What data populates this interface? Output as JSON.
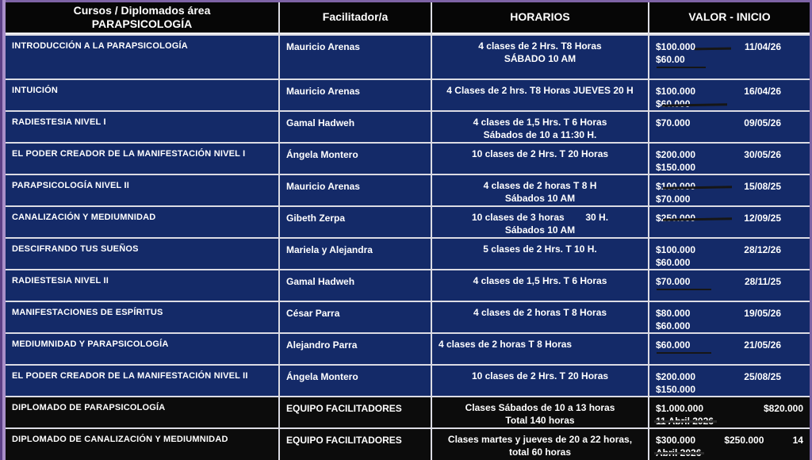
{
  "title": "Cursos y Diplomados área Parapsicología - tabla de horarios y valores",
  "colors": {
    "row_blue": "#142a68",
    "row_black": "#0c0c0c",
    "header_black": "#060606",
    "frame_purple": "#7d63a5",
    "separator": "#dcdce4",
    "text": "#ffffff",
    "pen_mark": "#161616"
  },
  "header": {
    "courses_line1": "Cursos / Diplomados área",
    "courses_line2": "PARAPSICOLOGÍA",
    "facilitator": "Facilitador/a",
    "schedule": "HORARIOS",
    "value": "VALOR - INICIO"
  },
  "rows": [
    {
      "theme": "blue",
      "course": "INTRODUCCIÓN A LA PARAPSICOLOGÍA",
      "facilitator": "Mauricio Arenas",
      "schedule": [
        "4 clases de 2 Hrs. T8 Horas",
        "SÁBADO 10 AM"
      ],
      "schedule_align": "center",
      "valor": {
        "line1": [
          {
            "text": "$100.000",
            "mark": "tail"
          },
          {
            "text": "11/04/26",
            "role": "date"
          }
        ],
        "line2": [
          {
            "text": "$60.00",
            "mark": "underline"
          }
        ]
      }
    },
    {
      "theme": "blue",
      "course": "INTUICIÓN",
      "facilitator": "Mauricio Arenas",
      "schedule": [
        "4 Clases de 2 hrs. T8 Horas JUEVES 20 H"
      ],
      "schedule_align": "center",
      "valor": {
        "line1": [
          {
            "text": "$100.000"
          },
          {
            "text": "16/04/26",
            "role": "date"
          }
        ],
        "line2": [
          {
            "text": "$60.000",
            "mark": "strike"
          }
        ]
      }
    },
    {
      "theme": "blue",
      "course": "RADIESTESIA NIVEL I",
      "facilitator": "Gamal Hadweh",
      "schedule": [
        "4 clases de 1,5 Hrs. T 6 Horas",
        "Sábados de 10 a 11:30 H."
      ],
      "schedule_align": "center",
      "valor": {
        "line1": [
          {
            "text": "$70.000"
          },
          {
            "text": "09/05/26",
            "role": "date"
          }
        ],
        "line2": []
      }
    },
    {
      "theme": "blue",
      "course": "EL PODER CREADOR DE LA MANIFESTACIÓN NIVEL I",
      "facilitator": "Ángela Montero",
      "schedule": [
        "10 clases de 2 Hrs. T 20 Horas"
      ],
      "schedule_align": "center",
      "valor": {
        "line1": [
          {
            "text": "$200.000"
          },
          {
            "text": "30/05/26",
            "role": "date"
          }
        ],
        "line2": [
          {
            "text": "$150.000"
          }
        ]
      }
    },
    {
      "theme": "blue",
      "course": "PARAPSICOLOGÍA NIVEL II",
      "facilitator": "Mauricio Arenas",
      "schedule": [
        "4 clases de 2 horas T 8 H",
        "Sábados 10 AM"
      ],
      "schedule_align": "center",
      "valor": {
        "line1": [
          {
            "text": "$100.000",
            "mark": "strike"
          },
          {
            "text": "15/08/25",
            "role": "date"
          }
        ],
        "line2": [
          {
            "text": "$70.000"
          }
        ]
      }
    },
    {
      "theme": "blue",
      "course": "CANALIZACIÓN Y MEDIUMNIDAD",
      "facilitator": "Gibeth Zerpa",
      "schedule": [
        "10 clases de 3 horas        30 H.",
        "Sábados 10 AM"
      ],
      "schedule_align": "center",
      "valor": {
        "line1": [
          {
            "text": "$250.000",
            "mark": "strike"
          },
          {
            "text": "12/09/25",
            "role": "date"
          }
        ],
        "line2": []
      }
    },
    {
      "theme": "blue",
      "course": "DESCIFRANDO TUS SUEÑOS",
      "facilitator": "Mariela y Alejandra",
      "schedule": [
        "5 clases de 2 Hrs. T 10 H."
      ],
      "schedule_align": "center",
      "valor": {
        "line1": [
          {
            "text": "$100.000"
          },
          {
            "text": "28/12/26",
            "role": "date"
          }
        ],
        "line2": [
          {
            "text": "$60.000"
          }
        ]
      }
    },
    {
      "theme": "blue",
      "course": "RADIESTESIA NIVEL II",
      "facilitator": "Gamal Hadweh",
      "schedule": [
        "4 clases de 1,5 Hrs. T 6 Horas"
      ],
      "schedule_align": "center",
      "valor": {
        "line1": [
          {
            "text": "$70.000",
            "mark": "underline"
          },
          {
            "text": "28/11/25",
            "role": "date"
          }
        ],
        "line2": []
      }
    },
    {
      "theme": "blue",
      "course": "MANIFESTACIONES DE ESPÍRITUS",
      "facilitator": "César Parra",
      "schedule": [
        "4 clases de 2 horas T 8 Horas"
      ],
      "schedule_align": "center",
      "valor": {
        "line1": [
          {
            "text": "$80.000"
          },
          {
            "text": "19/05/26",
            "role": "date"
          }
        ],
        "line2": [
          {
            "text": "$60.000"
          }
        ]
      }
    },
    {
      "theme": "blue",
      "course": "MEDIUMNIDAD Y PARAPSICOLOGÍA",
      "facilitator": "Alejandro Parra",
      "schedule": [
        "4 clases de 2 horas T 8 Horas"
      ],
      "schedule_align": "left",
      "valor": {
        "line1": [
          {
            "text": "$60.000",
            "mark": "underline"
          },
          {
            "text": "21/05/26",
            "role": "date"
          }
        ],
        "line2": []
      }
    },
    {
      "theme": "blue",
      "course": "EL PODER CREADOR DE LA MANIFESTACIÓN NIVEL II",
      "facilitator": "Ángela Montero",
      "schedule": [
        "10 clases de 2 Hrs. T 20 Horas"
      ],
      "schedule_align": "center",
      "valor": {
        "line1": [
          {
            "text": "$200.000"
          },
          {
            "text": "25/08/25",
            "role": "date"
          }
        ],
        "line2": [
          {
            "text": "$150.000"
          }
        ]
      }
    },
    {
      "theme": "black",
      "course": "DIPLOMADO DE PARAPSICOLOGÍA",
      "facilitator": "EQUIPO FACILITADORES",
      "schedule": [
        "Clases Sábados de 10 a 13 horas",
        "Total 140 horas"
      ],
      "schedule_align": "center",
      "valor": {
        "line1": [
          {
            "text": "$1.000.000"
          },
          {
            "text": "$820.000"
          }
        ],
        "line2": [
          {
            "text": "11 Abril 2026",
            "mark": "strike-full"
          }
        ]
      }
    },
    {
      "theme": "black",
      "course": "DIPLOMADO DE CANALIZACIÓN Y MEDIUMNIDAD",
      "facilitator": "EQUIPO FACILITADORES",
      "schedule": [
        "Clases martes y jueves de 20 a 22 horas,",
        "total 60 horas"
      ],
      "schedule_align": "center",
      "valor": {
        "line1": [
          {
            "text": "$300.000"
          },
          {
            "text": "$250.000"
          },
          {
            "text": "14"
          }
        ],
        "line2": [
          {
            "text": "Abril 2026",
            "mark": "strike-full"
          }
        ]
      }
    }
  ]
}
